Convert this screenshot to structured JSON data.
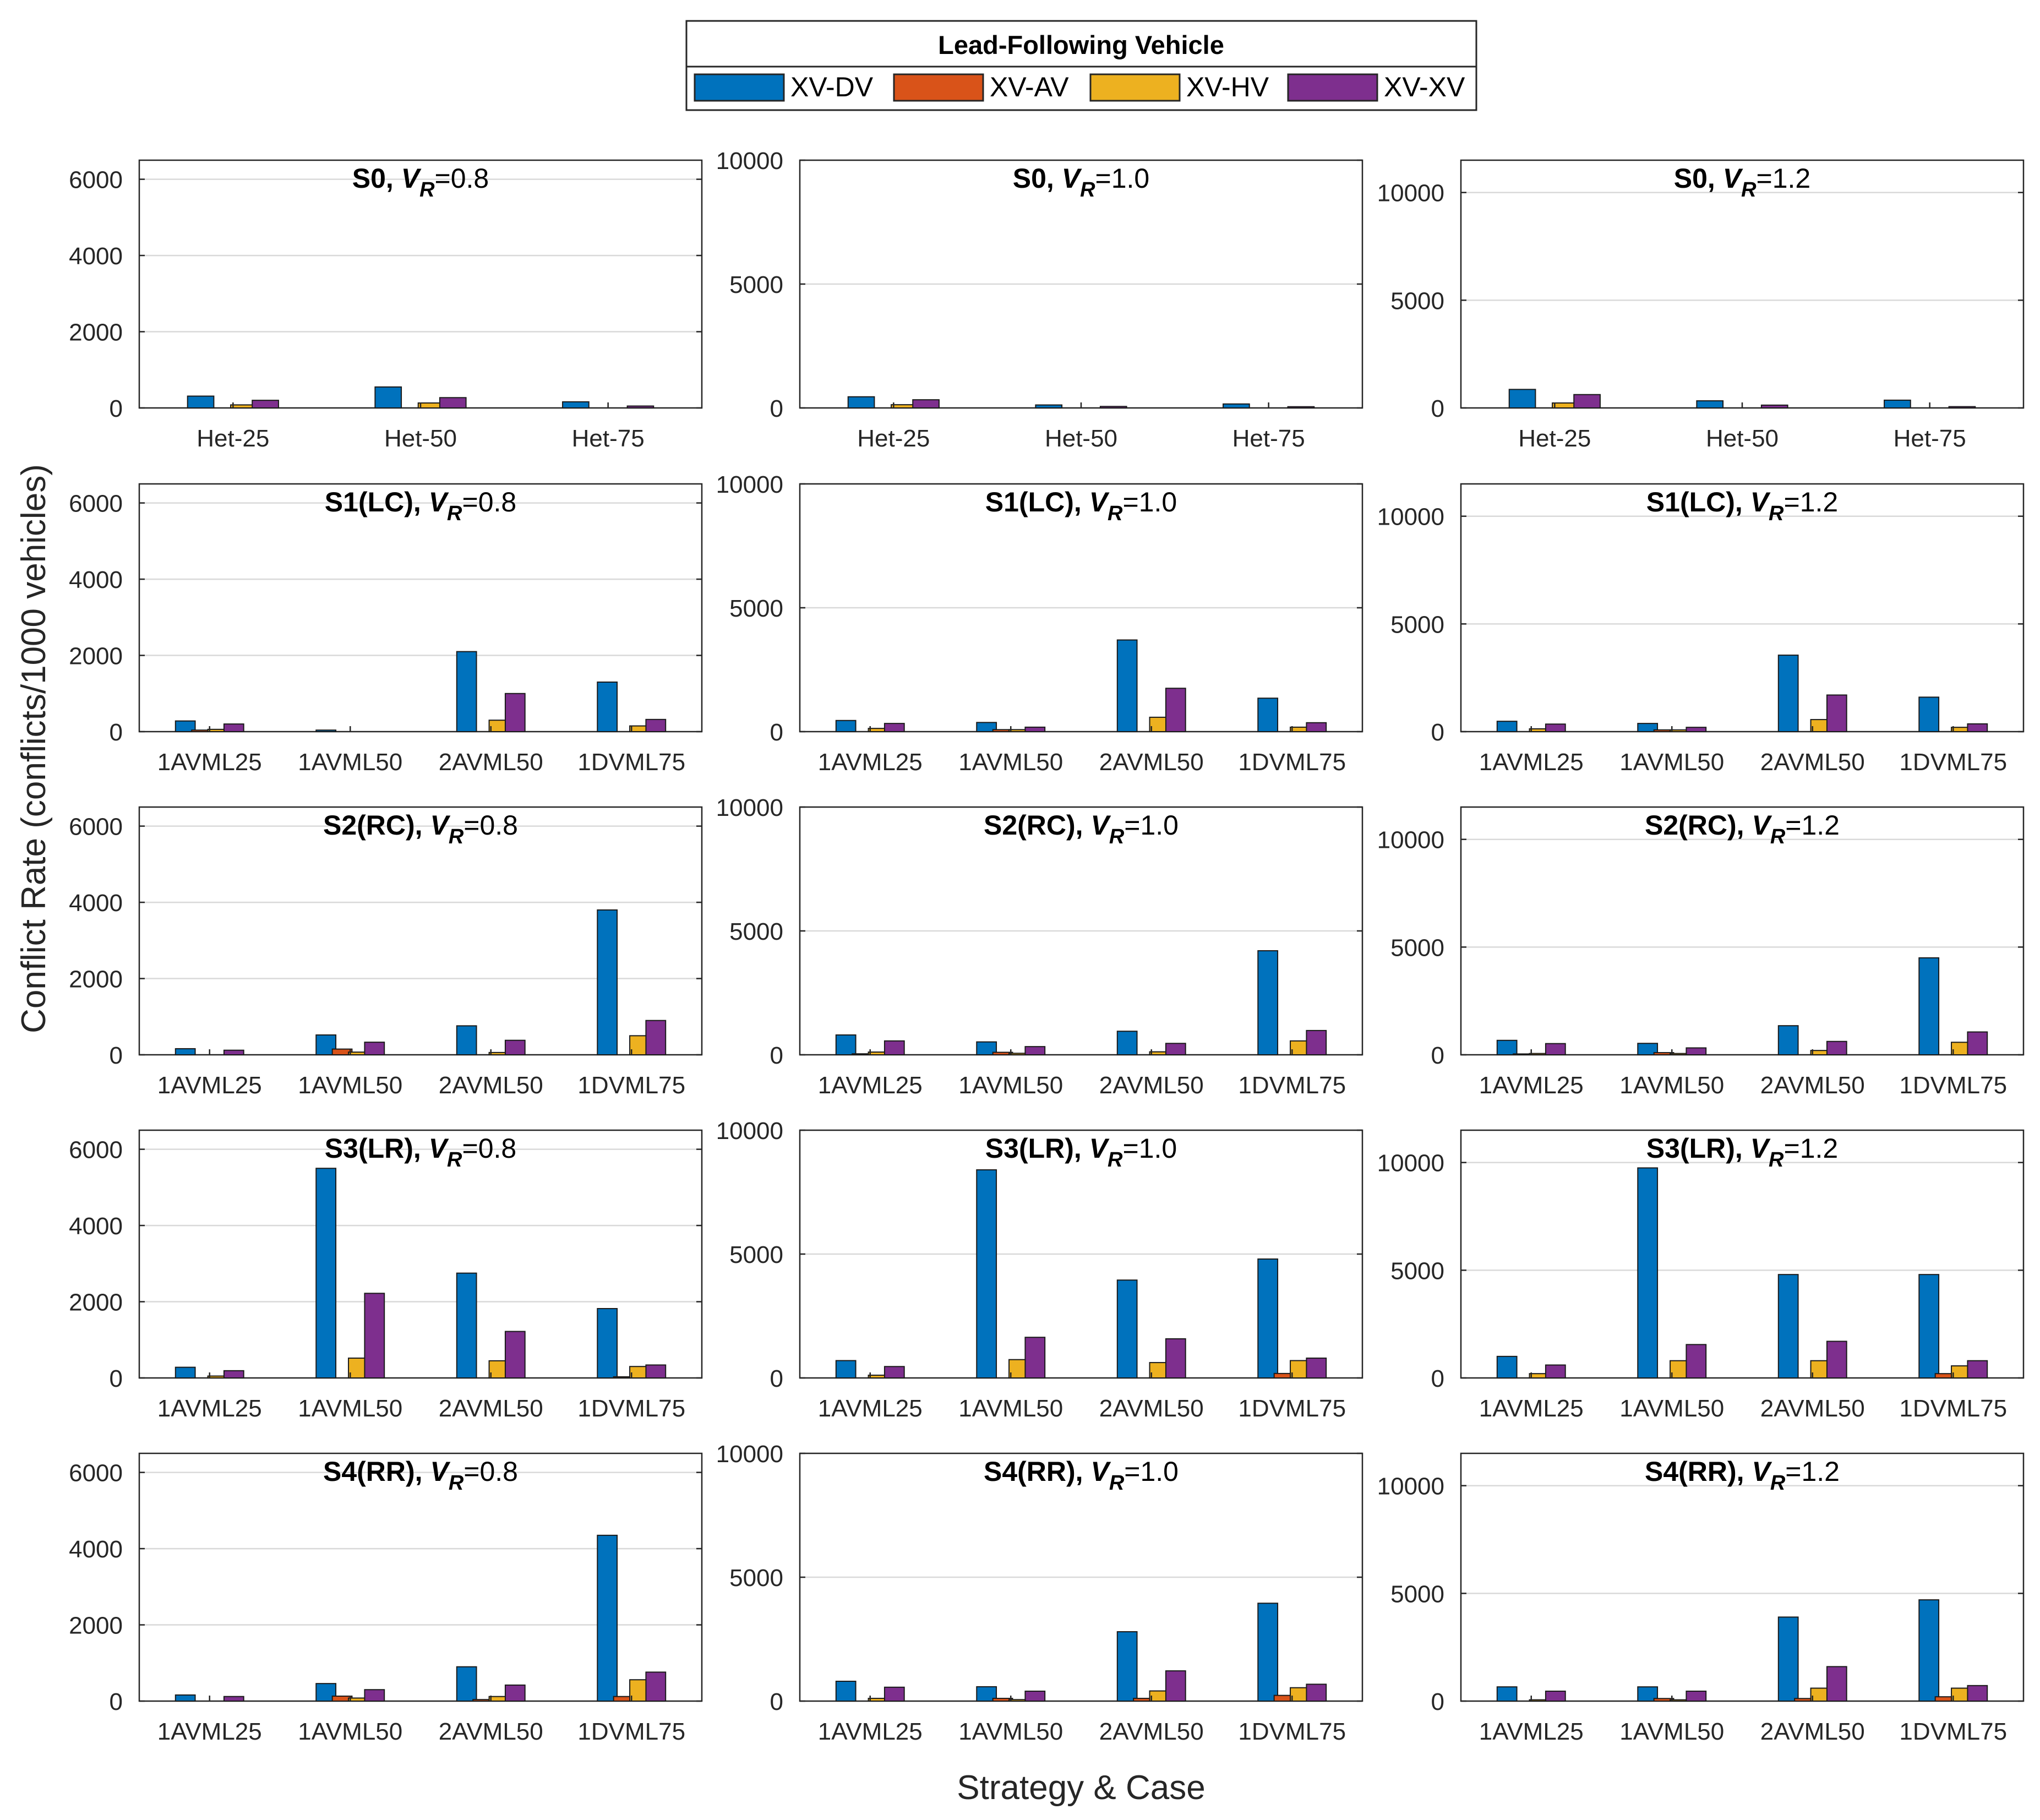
{
  "legend": {
    "title": "Lead-Following Vehicle",
    "entries": [
      "XV-DV",
      "XV-AV",
      "XV-HV",
      "XV-XV"
    ]
  },
  "colors": {
    "XV-DV": "#0072BD",
    "XV-AV": "#D95319",
    "XV-HV": "#EDB120",
    "XV-XV": "#7E2F8E",
    "grid": "#d9d9d9",
    "axis": "#262626"
  },
  "labels": {
    "xlabel": "Strategy & Case",
    "ylabel": "Conflict Rate (conflicts/1000 vehicles)"
  },
  "chart_data": [
    {
      "type": "bar",
      "id": "S0-0.8",
      "title_prefix": "S0,",
      "vr_text": "=0.8",
      "categories": [
        "Het-25",
        "Het-50",
        "Het-75"
      ],
      "ylim": [
        0,
        6500
      ],
      "yticks": [
        0,
        2000,
        4000,
        6000
      ],
      "grid": true,
      "series": [
        {
          "name": "XV-DV",
          "values": [
            310,
            550,
            160
          ]
        },
        {
          "name": "XV-AV",
          "values": [
            0,
            0,
            0
          ]
        },
        {
          "name": "XV-HV",
          "values": [
            80,
            130,
            0
          ]
        },
        {
          "name": "XV-XV",
          "values": [
            200,
            270,
            50
          ]
        }
      ]
    },
    {
      "type": "bar",
      "id": "S0-1.0",
      "title_prefix": "S0,",
      "vr_text": "=1.0",
      "categories": [
        "Het-25",
        "Het-50",
        "Het-75"
      ],
      "ylim": [
        0,
        10000
      ],
      "yticks": [
        0,
        5000,
        10000
      ],
      "grid": true,
      "series": [
        {
          "name": "XV-DV",
          "values": [
            450,
            120,
            160
          ]
        },
        {
          "name": "XV-AV",
          "values": [
            0,
            0,
            0
          ]
        },
        {
          "name": "XV-HV",
          "values": [
            130,
            0,
            0
          ]
        },
        {
          "name": "XV-XV",
          "values": [
            330,
            60,
            50
          ]
        }
      ]
    },
    {
      "type": "bar",
      "id": "S0-1.2",
      "title_prefix": "S0,",
      "vr_text": "=1.2",
      "categories": [
        "Het-25",
        "Het-50",
        "Het-75"
      ],
      "ylim": [
        0,
        11500
      ],
      "yticks": [
        0,
        5000,
        10000
      ],
      "grid": true,
      "series": [
        {
          "name": "XV-DV",
          "values": [
            860,
            330,
            360
          ]
        },
        {
          "name": "XV-AV",
          "values": [
            0,
            0,
            0
          ]
        },
        {
          "name": "XV-HV",
          "values": [
            230,
            0,
            0
          ]
        },
        {
          "name": "XV-XV",
          "values": [
            620,
            130,
            60
          ]
        }
      ]
    },
    {
      "type": "bar",
      "id": "S1-0.8",
      "title_prefix": "S1(LC),",
      "vr_text": "=0.8",
      "categories": [
        "1AVML25",
        "1AVML50",
        "2AVML50",
        "1DVML75"
      ],
      "ylim": [
        0,
        6500
      ],
      "yticks": [
        0,
        2000,
        4000,
        6000
      ],
      "grid": true,
      "series": [
        {
          "name": "XV-DV",
          "values": [
            280,
            40,
            2100,
            1300
          ]
        },
        {
          "name": "XV-AV",
          "values": [
            40,
            0,
            0,
            0
          ]
        },
        {
          "name": "XV-HV",
          "values": [
            60,
            0,
            300,
            150
          ]
        },
        {
          "name": "XV-XV",
          "values": [
            200,
            0,
            1000,
            320
          ]
        }
      ]
    },
    {
      "type": "bar",
      "id": "S1-1.0",
      "title_prefix": "S1(LC),",
      "vr_text": "=1.0",
      "categories": [
        "1AVML25",
        "1AVML50",
        "2AVML50",
        "1DVML75"
      ],
      "ylim": [
        0,
        10000
      ],
      "yticks": [
        0,
        5000,
        10000
      ],
      "grid": true,
      "series": [
        {
          "name": "XV-DV",
          "values": [
            450,
            370,
            3700,
            1350
          ]
        },
        {
          "name": "XV-AV",
          "values": [
            0,
            80,
            0,
            0
          ]
        },
        {
          "name": "XV-HV",
          "values": [
            130,
            80,
            580,
            180
          ]
        },
        {
          "name": "XV-XV",
          "values": [
            330,
            180,
            1750,
            360
          ]
        }
      ]
    },
    {
      "type": "bar",
      "id": "S1-1.2",
      "title_prefix": "S1(LC),",
      "vr_text": "=1.2",
      "categories": [
        "1AVML25",
        "1AVML50",
        "2AVML50",
        "1DVML75"
      ],
      "ylim": [
        0,
        11500
      ],
      "yticks": [
        0,
        5000,
        10000
      ],
      "grid": true,
      "series": [
        {
          "name": "XV-DV",
          "values": [
            480,
            380,
            3550,
            1600
          ]
        },
        {
          "name": "XV-AV",
          "values": [
            0,
            80,
            0,
            0
          ]
        },
        {
          "name": "XV-HV",
          "values": [
            130,
            80,
            560,
            200
          ]
        },
        {
          "name": "XV-XV",
          "values": [
            350,
            200,
            1700,
            360
          ]
        }
      ]
    },
    {
      "type": "bar",
      "id": "S2-0.8",
      "title_prefix": "S2(RC),",
      "vr_text": "=0.8",
      "categories": [
        "1AVML25",
        "1AVML50",
        "2AVML50",
        "1DVML75"
      ],
      "ylim": [
        0,
        6500
      ],
      "yticks": [
        0,
        2000,
        4000,
        6000
      ],
      "grid": true,
      "series": [
        {
          "name": "XV-DV",
          "values": [
            160,
            520,
            760,
            3800
          ]
        },
        {
          "name": "XV-AV",
          "values": [
            0,
            150,
            0,
            0
          ]
        },
        {
          "name": "XV-HV",
          "values": [
            0,
            70,
            60,
            500
          ]
        },
        {
          "name": "XV-XV",
          "values": [
            120,
            330,
            380,
            900
          ]
        }
      ]
    },
    {
      "type": "bar",
      "id": "S2-1.0",
      "title_prefix": "S2(RC),",
      "vr_text": "=1.0",
      "categories": [
        "1AVML25",
        "1AVML50",
        "2AVML50",
        "1DVML75"
      ],
      "ylim": [
        0,
        10000
      ],
      "yticks": [
        0,
        5000,
        10000
      ],
      "grid": true,
      "series": [
        {
          "name": "XV-DV",
          "values": [
            800,
            520,
            950,
            4200
          ]
        },
        {
          "name": "XV-AV",
          "values": [
            40,
            100,
            0,
            0
          ]
        },
        {
          "name": "XV-HV",
          "values": [
            110,
            60,
            120,
            560
          ]
        },
        {
          "name": "XV-XV",
          "values": [
            560,
            330,
            460,
            980
          ]
        }
      ]
    },
    {
      "type": "bar",
      "id": "S2-1.2",
      "title_prefix": "S2(RC),",
      "vr_text": "=1.2",
      "categories": [
        "1AVML25",
        "1AVML50",
        "2AVML50",
        "1DVML75"
      ],
      "ylim": [
        0,
        11500
      ],
      "yticks": [
        0,
        5000,
        10000
      ],
      "grid": true,
      "series": [
        {
          "name": "XV-DV",
          "values": [
            670,
            530,
            1350,
            4500
          ]
        },
        {
          "name": "XV-AV",
          "values": [
            40,
            100,
            0,
            0
          ]
        },
        {
          "name": "XV-HV",
          "values": [
            60,
            60,
            200,
            580
          ]
        },
        {
          "name": "XV-XV",
          "values": [
            520,
            320,
            620,
            1060
          ]
        }
      ]
    },
    {
      "type": "bar",
      "id": "S3-0.8",
      "title_prefix": "S3(LR),",
      "vr_text": "=0.8",
      "categories": [
        "1AVML25",
        "1AVML50",
        "2AVML50",
        "1DVML75"
      ],
      "ylim": [
        0,
        6500
      ],
      "yticks": [
        0,
        2000,
        4000,
        6000
      ],
      "grid": true,
      "series": [
        {
          "name": "XV-DV",
          "values": [
            280,
            5500,
            2750,
            1820
          ]
        },
        {
          "name": "XV-AV",
          "values": [
            0,
            0,
            0,
            30
          ]
        },
        {
          "name": "XV-HV",
          "values": [
            50,
            520,
            450,
            300
          ]
        },
        {
          "name": "XV-XV",
          "values": [
            190,
            2220,
            1220,
            340
          ]
        }
      ]
    },
    {
      "type": "bar",
      "id": "S3-1.0",
      "title_prefix": "S3(LR),",
      "vr_text": "=1.0",
      "categories": [
        "1AVML25",
        "1AVML50",
        "2AVML50",
        "1DVML75"
      ],
      "ylim": [
        0,
        10000
      ],
      "yticks": [
        0,
        5000,
        10000
      ],
      "grid": true,
      "series": [
        {
          "name": "XV-DV",
          "values": [
            700,
            8400,
            3950,
            4800
          ]
        },
        {
          "name": "XV-AV",
          "values": [
            0,
            0,
            0,
            180
          ]
        },
        {
          "name": "XV-HV",
          "values": [
            110,
            740,
            620,
            700
          ]
        },
        {
          "name": "XV-XV",
          "values": [
            460,
            1640,
            1580,
            800
          ]
        }
      ]
    },
    {
      "type": "bar",
      "id": "S3-1.2",
      "title_prefix": "S3(LR),",
      "vr_text": "=1.2",
      "categories": [
        "1AVML25",
        "1AVML50",
        "2AVML50",
        "1DVML75"
      ],
      "ylim": [
        0,
        11500
      ],
      "yticks": [
        0,
        5000,
        10000
      ],
      "grid": true,
      "series": [
        {
          "name": "XV-DV",
          "values": [
            1000,
            9750,
            4800,
            4800
          ]
        },
        {
          "name": "XV-AV",
          "values": [
            0,
            0,
            0,
            200
          ]
        },
        {
          "name": "XV-HV",
          "values": [
            200,
            800,
            800,
            560
          ]
        },
        {
          "name": "XV-XV",
          "values": [
            600,
            1550,
            1700,
            800
          ]
        }
      ]
    },
    {
      "type": "bar",
      "id": "S4-0.8",
      "title_prefix": "S4(RR),",
      "vr_text": "=0.8",
      "categories": [
        "1AVML25",
        "1AVML50",
        "2AVML50",
        "1DVML75"
      ],
      "ylim": [
        0,
        6500
      ],
      "yticks": [
        0,
        2000,
        4000,
        6000
      ],
      "grid": true,
      "series": [
        {
          "name": "XV-DV",
          "values": [
            160,
            460,
            900,
            4350
          ]
        },
        {
          "name": "XV-AV",
          "values": [
            0,
            130,
            40,
            120
          ]
        },
        {
          "name": "XV-HV",
          "values": [
            0,
            80,
            120,
            560
          ]
        },
        {
          "name": "XV-XV",
          "values": [
            120,
            300,
            420,
            760
          ]
        }
      ]
    },
    {
      "type": "bar",
      "id": "S4-1.0",
      "title_prefix": "S4(RR),",
      "vr_text": "=1.0",
      "categories": [
        "1AVML25",
        "1AVML50",
        "2AVML50",
        "1DVML75"
      ],
      "ylim": [
        0,
        10000
      ],
      "yticks": [
        0,
        5000,
        10000
      ],
      "grid": true,
      "series": [
        {
          "name": "XV-DV",
          "values": [
            800,
            580,
            2800,
            3950
          ]
        },
        {
          "name": "XV-AV",
          "values": [
            0,
            110,
            110,
            230
          ]
        },
        {
          "name": "XV-HV",
          "values": [
            110,
            60,
            410,
            540
          ]
        },
        {
          "name": "XV-XV",
          "values": [
            560,
            400,
            1220,
            680
          ]
        }
      ]
    },
    {
      "type": "bar",
      "id": "S4-1.2",
      "title_prefix": "S4(RR),",
      "vr_text": "=1.2",
      "categories": [
        "1AVML25",
        "1AVML50",
        "2AVML50",
        "1DVML75"
      ],
      "ylim": [
        0,
        11500
      ],
      "yticks": [
        0,
        5000,
        10000
      ],
      "grid": true,
      "series": [
        {
          "name": "XV-DV",
          "values": [
            660,
            660,
            3900,
            4700
          ]
        },
        {
          "name": "XV-AV",
          "values": [
            0,
            120,
            120,
            200
          ]
        },
        {
          "name": "XV-HV",
          "values": [
            60,
            60,
            600,
            600
          ]
        },
        {
          "name": "XV-XV",
          "values": [
            460,
            460,
            1600,
            720
          ]
        }
      ]
    }
  ]
}
